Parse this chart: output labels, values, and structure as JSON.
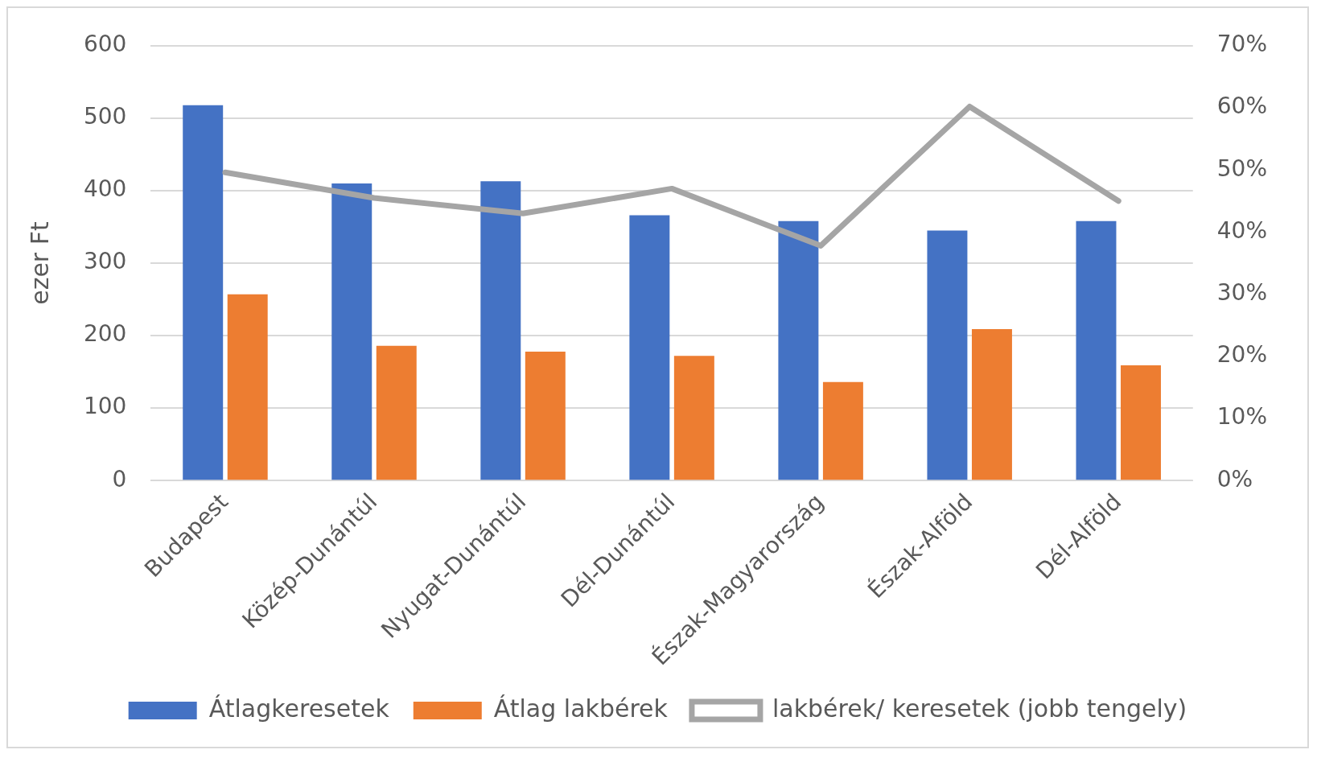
{
  "chart_data": {
    "type": "bar",
    "ylabel": "ezer Ft",
    "categories": [
      "Budapest",
      "Közép-Dunántúl",
      "Nyugat-Dunántúl",
      "Dél-Dunántúl",
      "Észak-Magyarország",
      "Észak-Alföld",
      "Dél-Alföld"
    ],
    "series": [
      {
        "name": "Átlagkeresetek",
        "color": "#4472c4",
        "values": [
          518,
          410,
          413,
          366,
          358,
          345,
          358
        ]
      },
      {
        "name": "Átlag lakbérek",
        "color": "#ed7d31",
        "values": [
          257,
          186,
          178,
          172,
          136,
          209,
          159
        ]
      },
      {
        "name": "lakbérek/ keresetek (jobb tengely)",
        "type": "line",
        "axis": "y2",
        "color": "#a5a5a5",
        "values": [
          49.6,
          45.5,
          43,
          47,
          37.8,
          60.2,
          45
        ]
      }
    ],
    "ylim": [
      0,
      600
    ],
    "yticks": [
      0,
      100,
      200,
      300,
      400,
      500,
      600
    ],
    "y2lim": [
      0,
      70
    ],
    "y2ticks": [
      {
        "value": 0,
        "label": "0%"
      },
      {
        "value": 10,
        "label": "10%"
      },
      {
        "value": 20,
        "label": "20%"
      },
      {
        "value": 30,
        "label": "30%"
      },
      {
        "value": 40,
        "label": "40%"
      },
      {
        "value": 50,
        "label": "50%"
      },
      {
        "value": 60,
        "label": "60%"
      },
      {
        "value": 70,
        "label": "70%"
      }
    ],
    "grid": "y",
    "legend": "bottom",
    "marker": "none",
    "line_style": "solid"
  }
}
